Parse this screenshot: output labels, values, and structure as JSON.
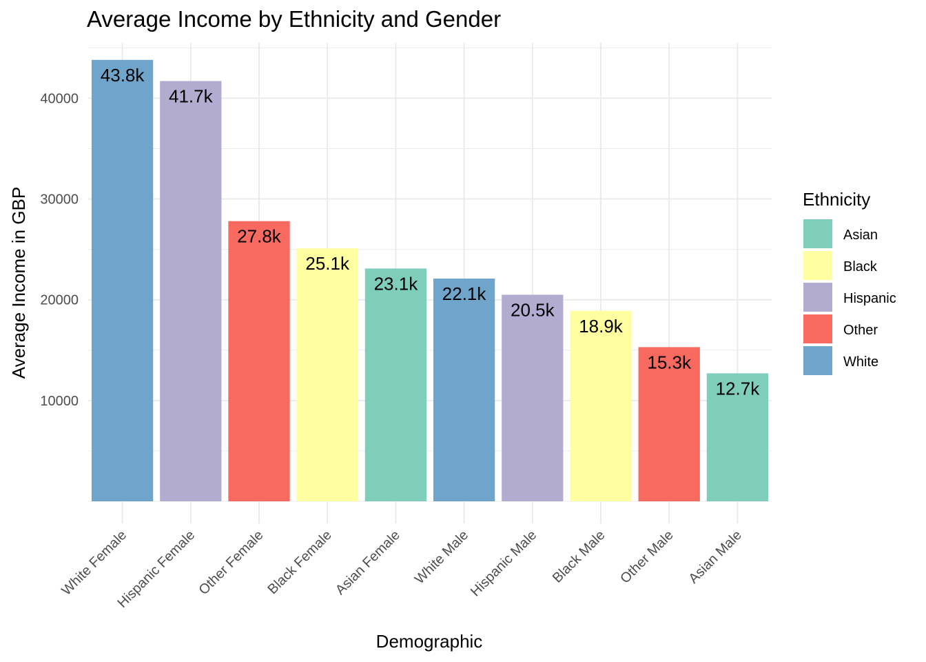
{
  "chart_data": {
    "type": "bar",
    "title": "Average Income by Ethnicity and Gender",
    "xlabel": "Demographic",
    "ylabel": "Average Income in GBP",
    "categories": [
      "White Female",
      "Hispanic Female",
      "Other Female",
      "Black Female",
      "Asian Female",
      "White Male",
      "Hispanic Male",
      "Black Male",
      "Other Male",
      "Asian Male"
    ],
    "values": [
      43800,
      41700,
      27800,
      25100,
      23100,
      22100,
      20500,
      18900,
      15300,
      12700
    ],
    "data_labels": [
      "43.8k",
      "41.7k",
      "27.8k",
      "25.1k",
      "23.1k",
      "22.1k",
      "20.5k",
      "18.9k",
      "15.3k",
      "12.7k"
    ],
    "bar_ethnicity": [
      "White",
      "Hispanic",
      "Other",
      "Black",
      "Asian",
      "White",
      "Hispanic",
      "Black",
      "Other",
      "Asian"
    ],
    "y_ticks": [
      10000,
      20000,
      30000,
      40000
    ],
    "y_tick_labels": [
      "10000",
      "20000",
      "30000",
      "40000"
    ],
    "ylim": [
      0,
      45500
    ],
    "grid": true,
    "legend": {
      "title": "Ethnicity",
      "position": "right",
      "entries": [
        {
          "name": "Asian",
          "color": "#7FCDBB"
        },
        {
          "name": "Black",
          "color": "#FFFFA1"
        },
        {
          "name": "Hispanic",
          "color": "#B2ACD1"
        },
        {
          "name": "Other",
          "color": "#F8695F"
        },
        {
          "name": "White",
          "color": "#6FA4CB"
        }
      ]
    }
  }
}
